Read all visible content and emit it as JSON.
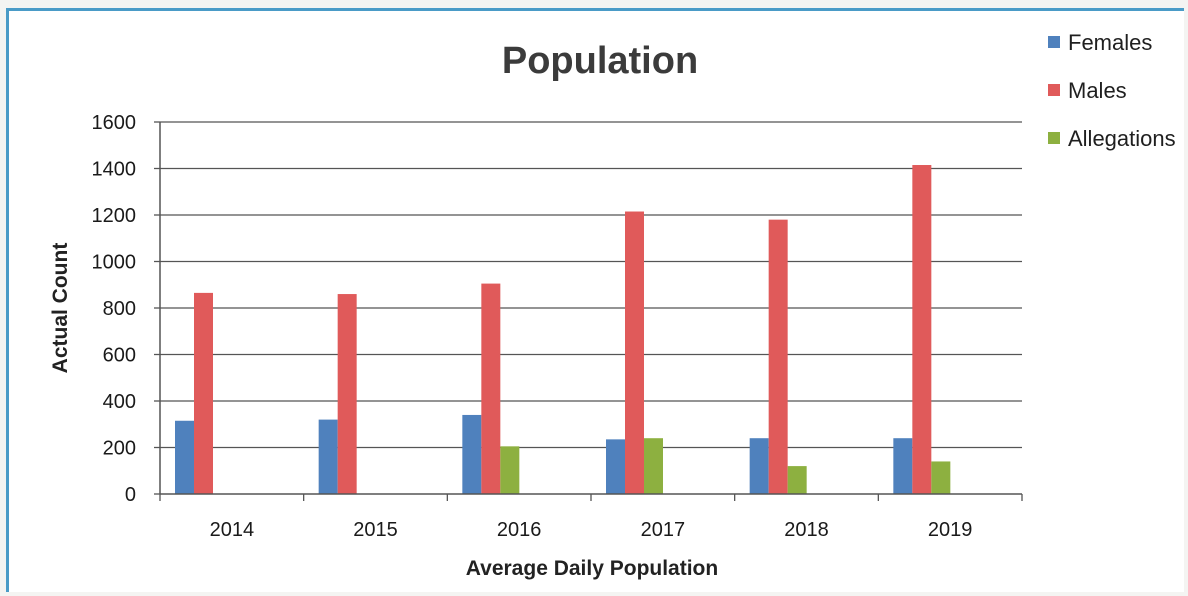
{
  "chart_data": {
    "type": "bar",
    "title": "Population",
    "xlabel": "Average Daily Population",
    "ylabel": "Actual Count",
    "categories": [
      "2014",
      "2015",
      "2016",
      "2017",
      "2018",
      "2019"
    ],
    "series": [
      {
        "name": "Females",
        "color": "#4f81bd",
        "values": [
          315,
          320,
          340,
          235,
          240,
          240
        ]
      },
      {
        "name": "Males",
        "color": "#e05a5a",
        "values": [
          865,
          860,
          905,
          1215,
          1180,
          1415
        ]
      },
      {
        "name": "Allegations",
        "color": "#8db040",
        "values": [
          0,
          0,
          205,
          240,
          120,
          140
        ]
      }
    ],
    "ylim": [
      0,
      1600
    ],
    "yticks": [
      "0",
      "200",
      "400",
      "600",
      "800",
      "1000",
      "1200",
      "1400",
      "1600"
    ],
    "grid": true,
    "legend_position": "top-right"
  }
}
